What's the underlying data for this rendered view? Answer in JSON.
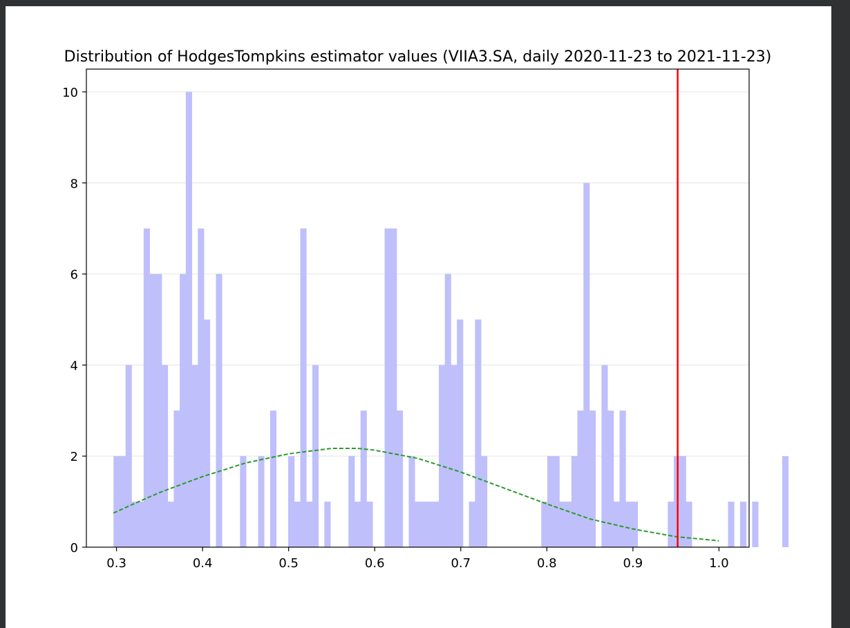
{
  "chart_data": {
    "type": "bar",
    "title": "Distribution of HodgesTompkins estimator values (VIIA3.SA, daily 2020-11-23 to 2021-11-23)",
    "xlabel": "",
    "ylabel": "",
    "xlim": [
      0.265,
      1.035
    ],
    "ylim": [
      0,
      10.5
    ],
    "xticks": [
      "0.3",
      "0.4",
      "0.5",
      "0.6",
      "0.7",
      "0.8",
      "0.9",
      "1.0"
    ],
    "yticks": [
      "0",
      "2",
      "4",
      "6",
      "8",
      "10"
    ],
    "grid": "horizontal",
    "bin_width": 0.007,
    "bin_start": 0.2965,
    "counts": [
      2,
      2,
      4,
      1,
      1,
      7,
      6,
      6,
      4,
      1,
      3,
      6,
      10,
      4,
      7,
      5,
      0,
      6,
      0,
      0,
      0,
      2,
      0,
      0,
      2,
      0,
      3,
      0,
      0,
      2,
      1,
      7,
      1,
      4,
      0,
      1,
      0,
      0,
      0,
      2,
      1,
      3,
      1,
      0,
      0,
      7,
      7,
      3,
      0,
      2,
      1,
      1,
      1,
      1,
      4,
      6,
      4,
      5,
      0,
      1,
      5,
      2,
      0,
      0,
      0,
      0,
      0,
      0,
      0,
      0,
      0,
      1,
      2,
      2,
      1,
      1,
      2,
      3,
      8,
      3,
      0,
      4,
      3,
      1,
      3,
      1,
      1,
      0,
      0,
      0,
      0,
      0,
      1,
      2,
      2,
      1,
      0,
      0,
      0,
      0,
      0,
      0,
      1,
      0,
      1,
      0,
      1,
      0,
      0,
      0,
      0,
      2
    ],
    "bar_color": "#bfbffb",
    "fit_curve": {
      "style": "dashed",
      "color": "#2a9a2a",
      "points": [
        [
          0.2965,
          0.75
        ],
        [
          0.32,
          0.95
        ],
        [
          0.35,
          1.2
        ],
        [
          0.4,
          1.55
        ],
        [
          0.45,
          1.85
        ],
        [
          0.5,
          2.05
        ],
        [
          0.55,
          2.17
        ],
        [
          0.58,
          2.17
        ],
        [
          0.6,
          2.13
        ],
        [
          0.65,
          1.95
        ],
        [
          0.7,
          1.65
        ],
        [
          0.75,
          1.3
        ],
        [
          0.8,
          0.95
        ],
        [
          0.85,
          0.62
        ],
        [
          0.9,
          0.4
        ],
        [
          0.95,
          0.23
        ],
        [
          1.0,
          0.14
        ]
      ]
    },
    "vline": {
      "x": 0.952,
      "color": "#ff0000"
    }
  }
}
